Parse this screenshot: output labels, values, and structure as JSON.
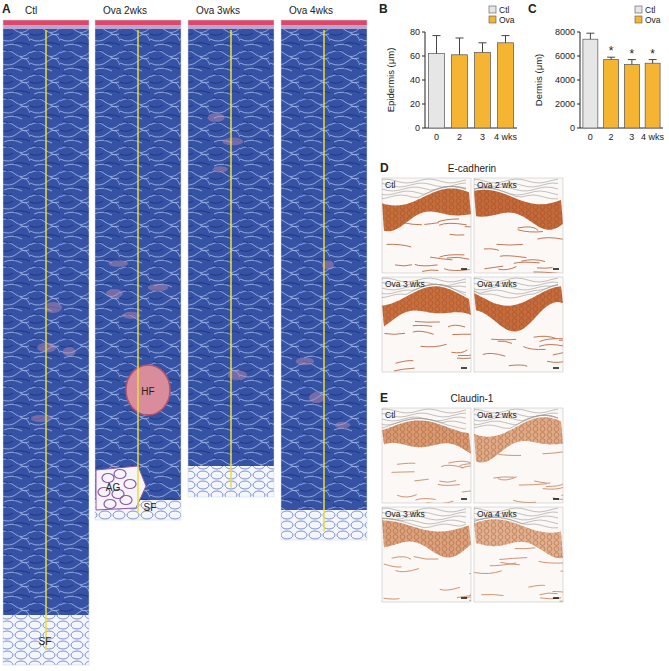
{
  "figure": {
    "panel_a": {
      "label": "A",
      "columns": [
        {
          "label": "Ctl",
          "tissue_labels": [
            "SF"
          ]
        },
        {
          "label": "Ova 2wks",
          "tissue_labels": [
            "HF",
            "AG",
            "SF"
          ]
        },
        {
          "label": "Ova 3wks",
          "tissue_labels": []
        },
        {
          "label": "Ova 4wks",
          "tissue_labels": []
        }
      ]
    },
    "panel_d": {
      "label": "D",
      "title": "E-cadherin",
      "images": [
        "Ctl",
        "Ova 2 wks",
        "Ova 3 wks",
        "Ova 4 wks"
      ]
    },
    "panel_e": {
      "label": "E",
      "title": "Claudin-1",
      "images": [
        "Ctl",
        "Ova 2 wks",
        "Ova 3 wks",
        "Ova 4 wks"
      ]
    }
  },
  "chart_data": [
    {
      "type": "bar",
      "panel": "B",
      "y_label": "Epidermis (μm)",
      "categories": [
        "0",
        "2",
        "3",
        "4 wks"
      ],
      "ylim": [
        0,
        80
      ],
      "yticks": [
        0,
        20,
        40,
        60,
        80
      ],
      "legend": "upper right",
      "series": [
        {
          "name": "Ctl",
          "color": "#e6e6e6",
          "values": [
            62,
            null,
            null,
            null
          ],
          "errors": [
            15,
            null,
            null,
            null
          ]
        },
        {
          "name": "Ova",
          "color": "#f6b433",
          "values": [
            null,
            61,
            63,
            71
          ],
          "errors": [
            null,
            14,
            8,
            6
          ]
        }
      ]
    },
    {
      "type": "bar",
      "panel": "C",
      "y_label": "Dermis (μm)",
      "categories": [
        "0",
        "2",
        "3",
        "4 wks"
      ],
      "ylim": [
        0,
        8000
      ],
      "yticks": [
        0,
        2000,
        4000,
        6000,
        8000
      ],
      "legend": "upper right",
      "series": [
        {
          "name": "Ctl",
          "color": "#e6e6e6",
          "values": [
            7400,
            null,
            null,
            null
          ],
          "errors": [
            500,
            null,
            null,
            null
          ]
        },
        {
          "name": "Ova",
          "color": "#f6b433",
          "values": [
            null,
            5700,
            5300,
            5400
          ],
          "errors": [
            null,
            200,
            400,
            300
          ]
        }
      ],
      "annotations": [
        {
          "text": "*",
          "category": "2",
          "series": "Ova"
        },
        {
          "text": "*",
          "category": "3",
          "series": "Ova"
        },
        {
          "text": "*",
          "category": "4 wks",
          "series": "Ova"
        }
      ]
    }
  ]
}
